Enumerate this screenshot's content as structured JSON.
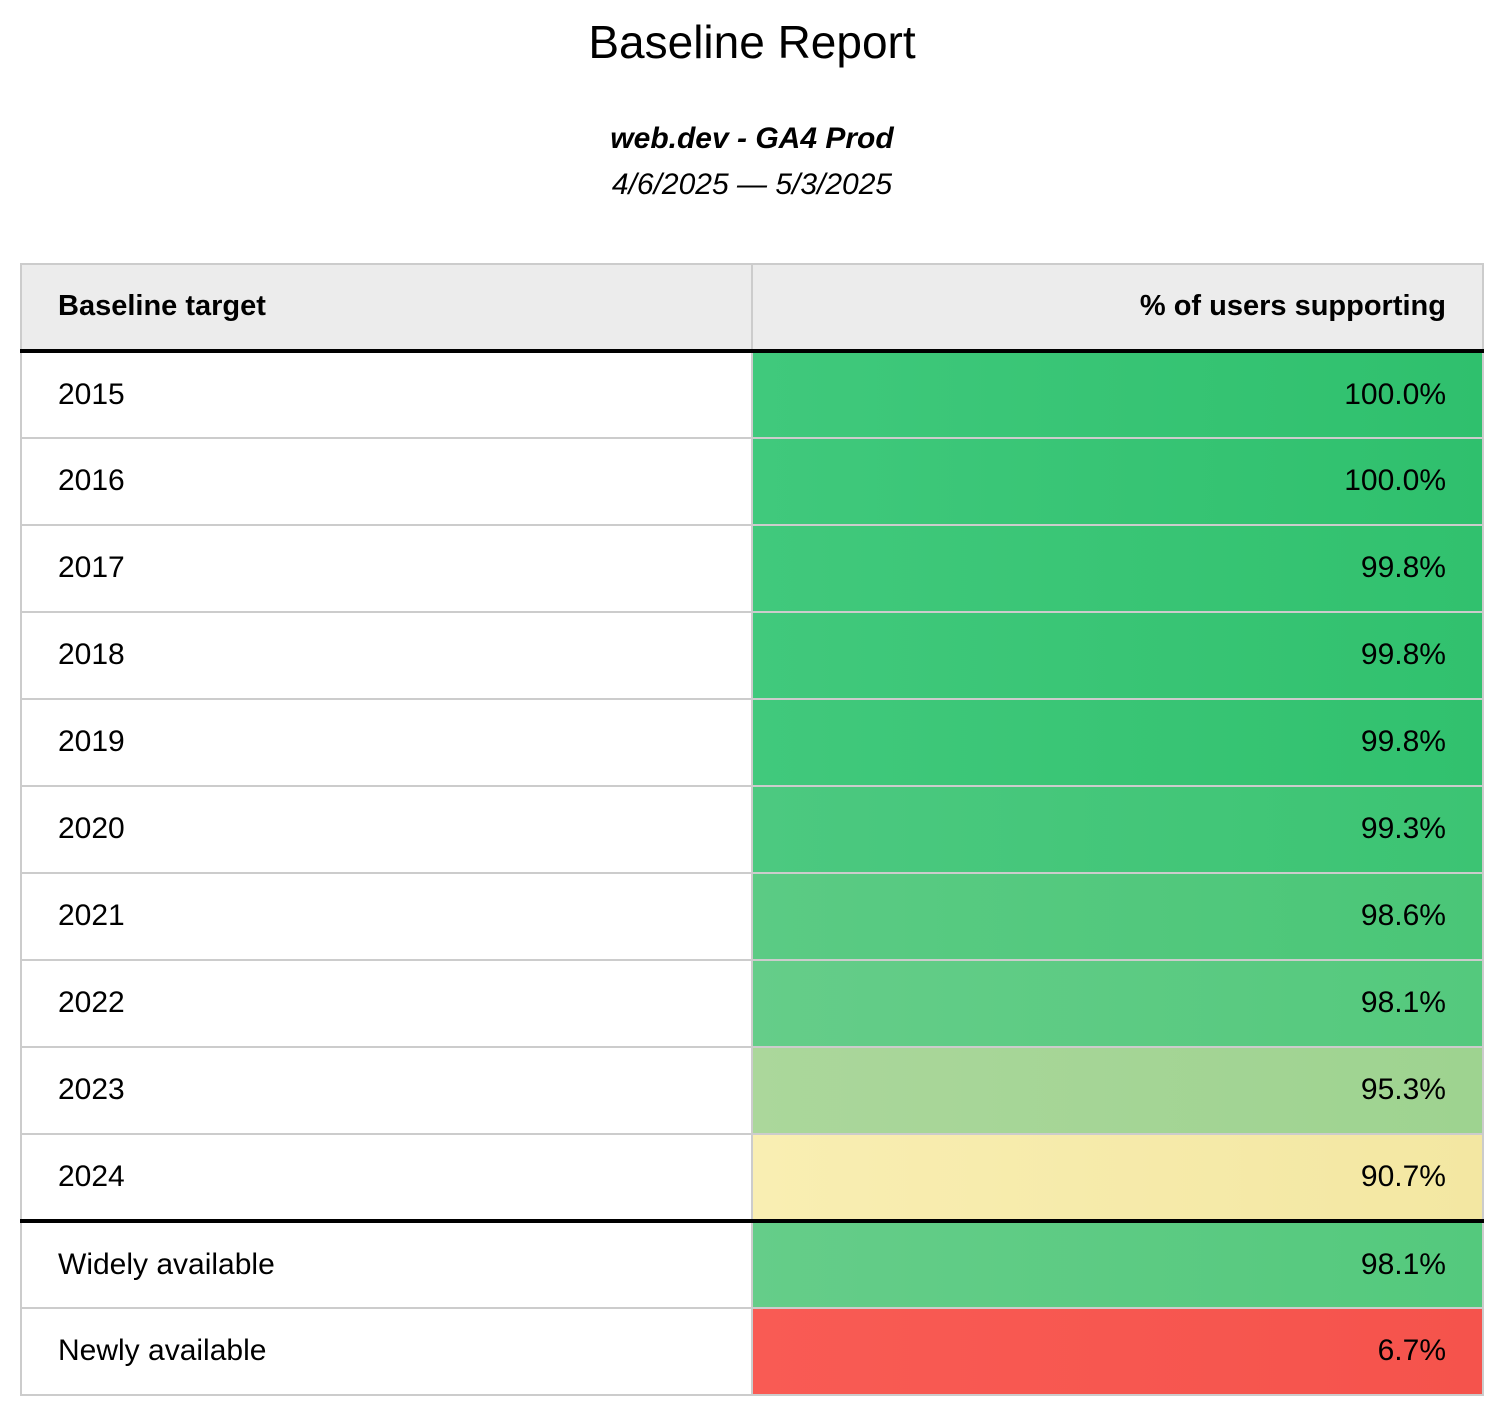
{
  "report": {
    "title": "Baseline Report",
    "subtitle": "web.dev - GA4 Prod",
    "date_range": "4/6/2025 — 5/3/2025"
  },
  "table": {
    "columns": [
      {
        "label": "Baseline target"
      },
      {
        "label": "% of users supporting"
      }
    ],
    "rows": [
      {
        "target": "2015",
        "value": "100.0%",
        "color_left": "#40c97c",
        "color_right": "#2fc06d"
      },
      {
        "target": "2016",
        "value": "100.0%",
        "color_left": "#40c97c",
        "color_right": "#2fc06d"
      },
      {
        "target": "2017",
        "value": "99.8%",
        "color_left": "#41c97c",
        "color_right": "#31c16e"
      },
      {
        "target": "2018",
        "value": "99.8%",
        "color_left": "#41c97c",
        "color_right": "#31c16e"
      },
      {
        "target": "2019",
        "value": "99.8%",
        "color_left": "#41c97c",
        "color_right": "#31c16e"
      },
      {
        "target": "2020",
        "value": "99.3%",
        "color_left": "#4cc980",
        "color_right": "#3cc473"
      },
      {
        "target": "2021",
        "value": "98.6%",
        "color_left": "#5bcb84",
        "color_right": "#4ac677"
      },
      {
        "target": "2022",
        "value": "98.1%",
        "color_left": "#65cd89",
        "color_right": "#54c97d"
      },
      {
        "target": "2023",
        "value": "95.3%",
        "color_left": "#abd79b",
        "color_right": "#9ed390"
      },
      {
        "target": "2024",
        "value": "90.7%",
        "color_left": "#f9eeb2",
        "color_right": "#f3e7a2"
      },
      {
        "target": "Widely available",
        "value": "98.1%",
        "color_left": "#65cd89",
        "color_right": "#54c97d"
      },
      {
        "target": "Newly available",
        "value": "6.7%",
        "color_left": "#f95b54",
        "color_right": "#f5534c"
      }
    ]
  },
  "colors": {
    "header_bg": "#ececec",
    "border_color": "#cccccc",
    "divider_color": "#000000",
    "good_green": "#2fc06d",
    "warn_yellow": "#f6e9a6",
    "bad_red": "#f8574f"
  }
}
